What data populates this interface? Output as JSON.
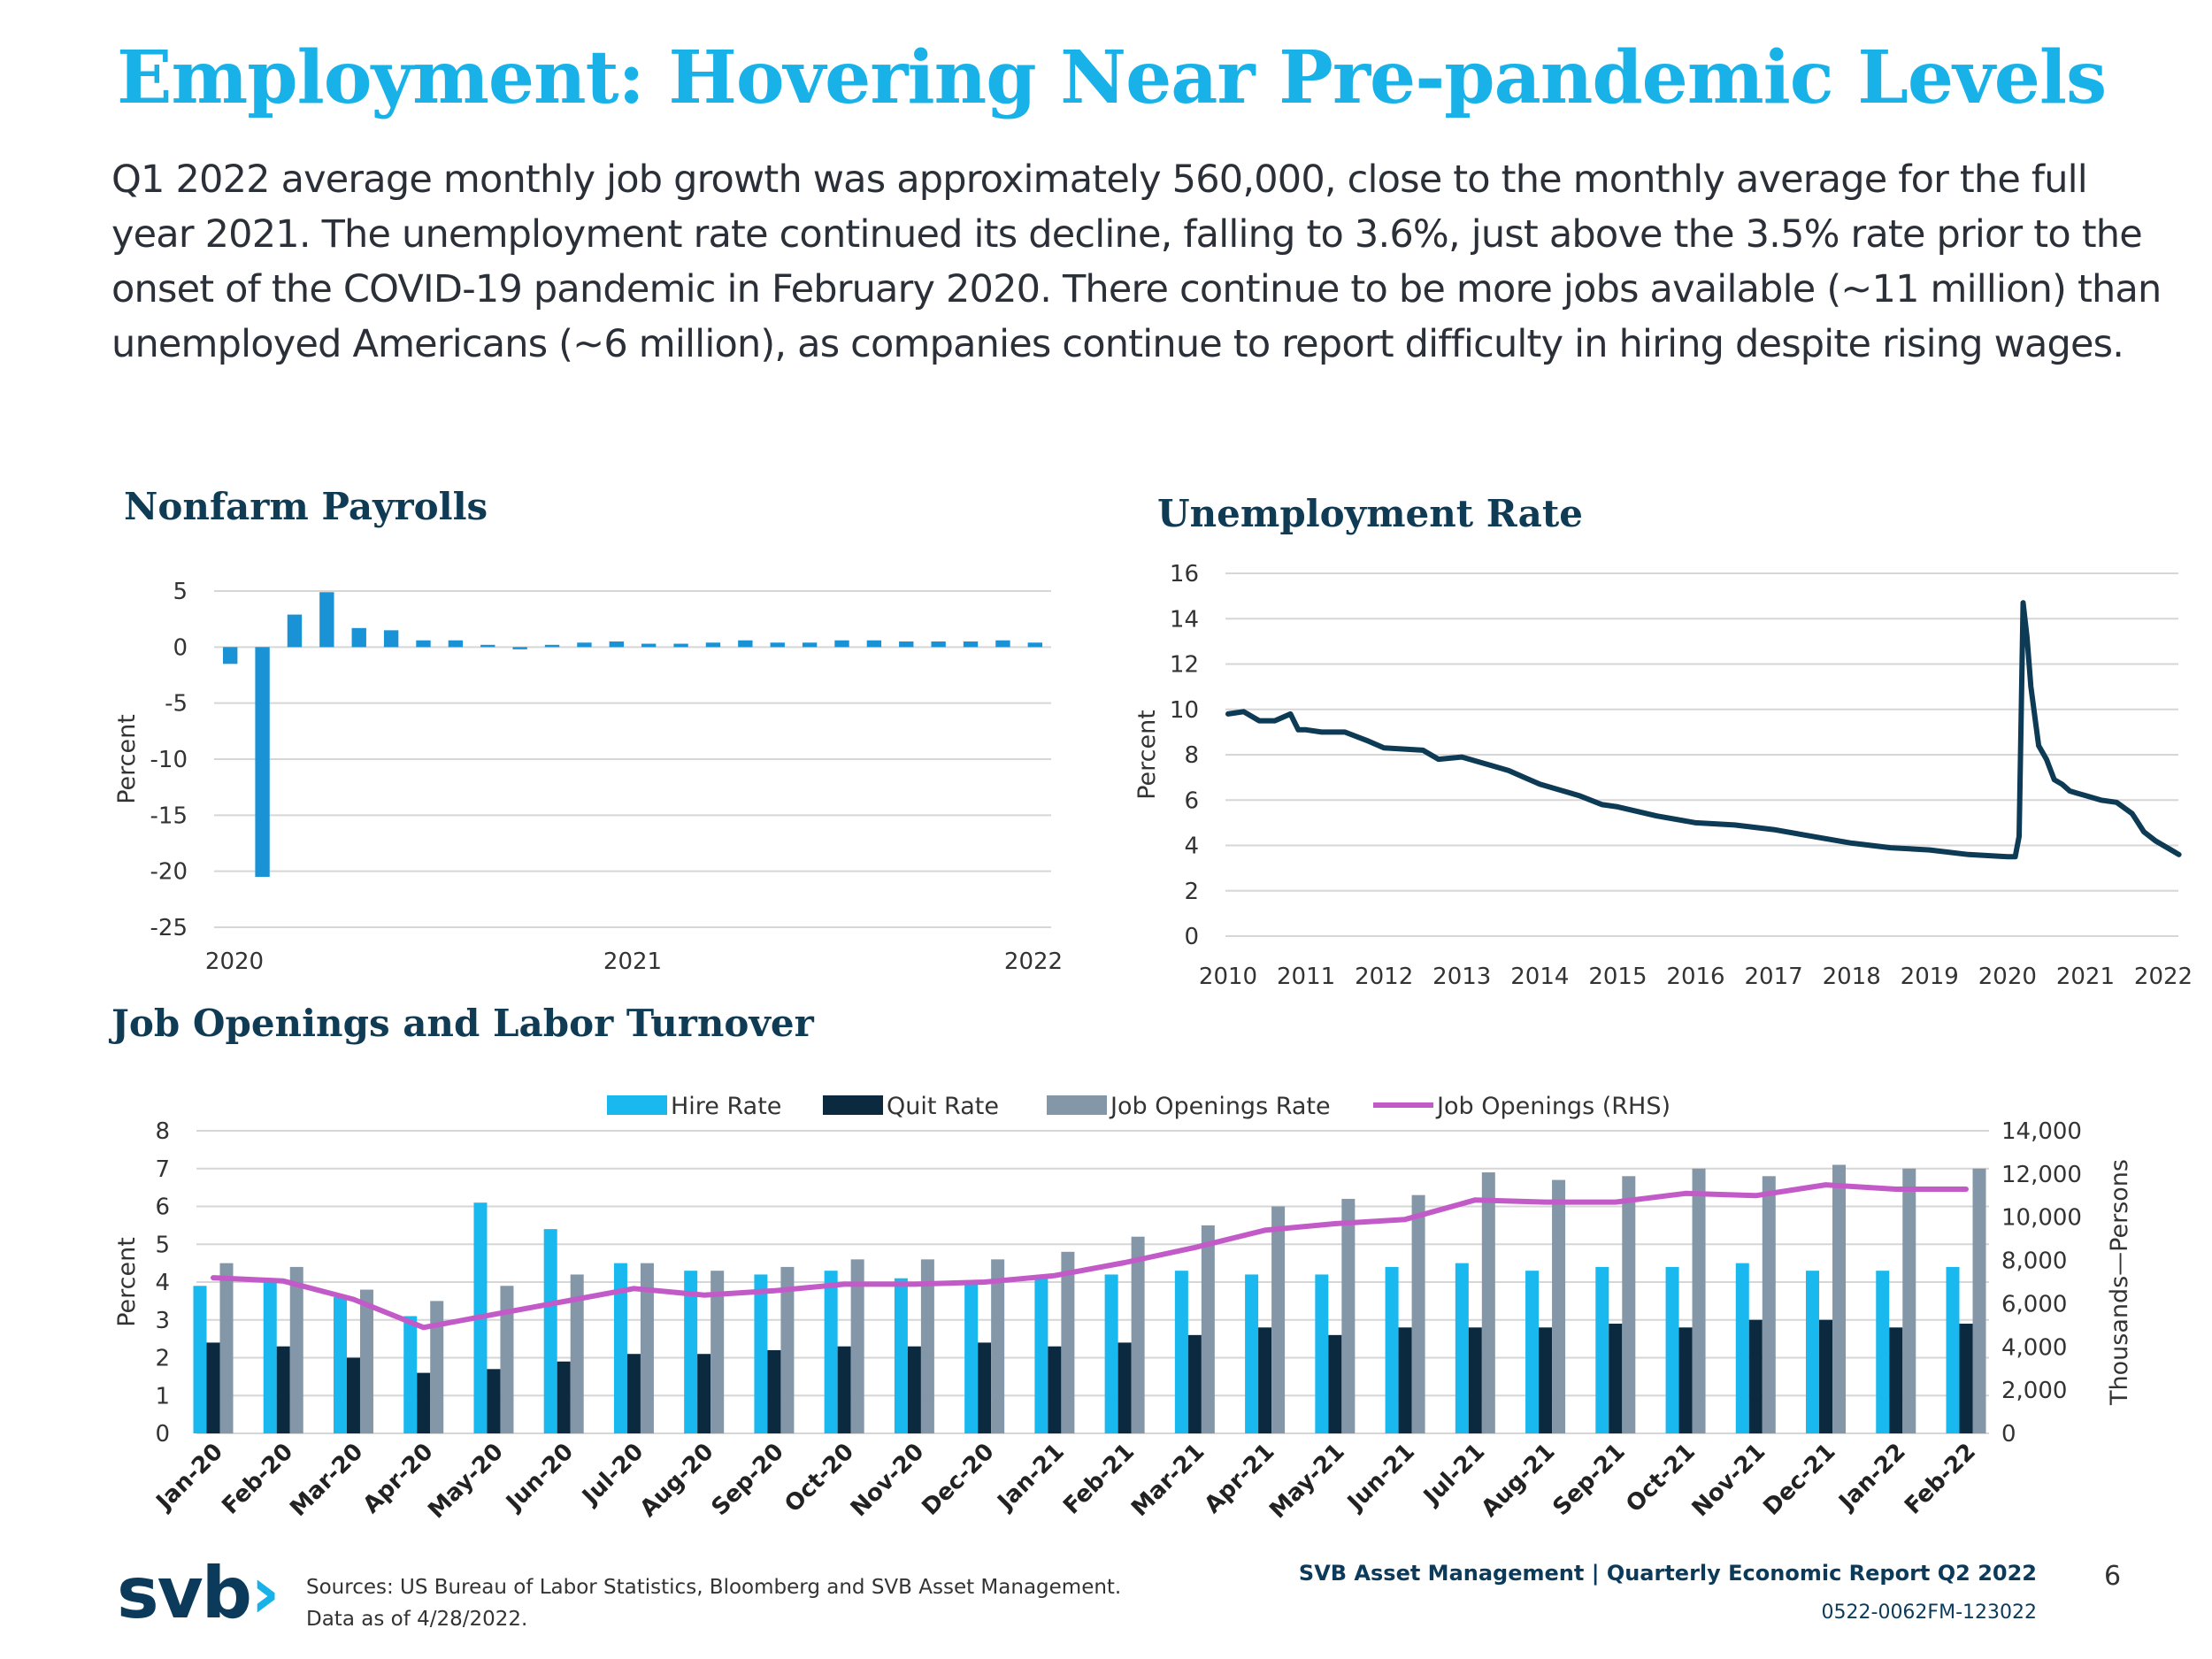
{
  "title": "Employment: Hovering Near Pre-pandemic Levels",
  "intro": "Q1 2022 average monthly job growth was approximately 560,000, close to the monthly average for the full year 2021. The unemployment rate continued its decline, falling to 3.6%, just above the 3.5% rate prior to the onset of the COVID-19 pandemic in February 2020. There continue to be more jobs available (~11 million) than unemployed Americans (~6 million), as companies continue to report difficulty in hiring despite rising wages.",
  "colors": {
    "title": "#19b2e8",
    "heading": "#0f3b55",
    "hire": "#19b8ee",
    "quit": "#0b2a3f",
    "openings_rate": "#8497a8",
    "openings_rhs": "#c25bc8",
    "payroll_bar": "#1a93d6",
    "unemp_line": "#0d3a55"
  },
  "chart_data": [
    {
      "id": "payrolls",
      "type": "bar",
      "title": "Nonfarm Payrolls",
      "ylabel": "Percent",
      "ylim": [
        -25,
        5
      ],
      "yticks": [
        "5",
        "0",
        "-5",
        "-10",
        "-15",
        "-20",
        "-25"
      ],
      "ytick_values": [
        5,
        0,
        -5,
        -10,
        -15,
        -20,
        -25
      ],
      "xticks": [
        "2020",
        "2021",
        "2022"
      ],
      "months": [
        "Jan-20",
        "Feb-20",
        "Mar-20",
        "Apr-20",
        "May-20",
        "Jun-20",
        "Jul-20",
        "Aug-20",
        "Sep-20",
        "Oct-20",
        "Nov-20",
        "Dec-20",
        "Jan-21",
        "Feb-21",
        "Mar-21",
        "Apr-21",
        "May-21",
        "Jun-21",
        "Jul-21",
        "Aug-21",
        "Sep-21",
        "Oct-21",
        "Nov-21",
        "Dec-21",
        "Jan-22",
        "Feb-22"
      ],
      "values": [
        -1.5,
        -20.5,
        2.9,
        4.9,
        1.7,
        1.5,
        0.6,
        0.6,
        0.2,
        -0.2,
        0.2,
        0.4,
        0.5,
        0.3,
        0.3,
        0.4,
        0.6,
        0.4,
        0.4,
        0.6,
        0.6,
        0.5,
        0.5,
        0.5,
        0.6,
        0.4
      ]
    },
    {
      "id": "unemployment",
      "type": "line",
      "title": "Unemployment Rate",
      "ylabel": "Percent",
      "ylim": [
        0,
        16
      ],
      "yticks": [
        "16",
        "14",
        "12",
        "10",
        "8",
        "6",
        "4",
        "2",
        "0"
      ],
      "ytick_values": [
        16,
        14,
        12,
        10,
        8,
        6,
        4,
        2,
        0
      ],
      "xticks": [
        "2010",
        "2011",
        "2012",
        "2013",
        "2014",
        "2015",
        "2016",
        "2017",
        "2018",
        "2019",
        "2020",
        "2021",
        "2022"
      ],
      "x_range": [
        2010,
        2022.25
      ],
      "series": [
        {
          "name": "Unemployment Rate",
          "x": [
            2010.0,
            2010.2,
            2010.4,
            2010.6,
            2010.8,
            2010.9,
            2011.0,
            2011.2,
            2011.5,
            2011.8,
            2012.0,
            2012.5,
            2012.7,
            2013.0,
            2013.4,
            2013.6,
            2013.8,
            2014.0,
            2014.5,
            2014.8,
            2015.0,
            2015.5,
            2016.0,
            2016.5,
            2017.0,
            2017.5,
            2018.0,
            2018.5,
            2019.0,
            2019.5,
            2020.0,
            2020.1,
            2020.15,
            2020.2,
            2020.25,
            2020.3,
            2020.4,
            2020.5,
            2020.6,
            2020.7,
            2020.8,
            2020.9,
            2021.0,
            2021.2,
            2021.4,
            2021.6,
            2021.75,
            2021.9,
            2022.0,
            2022.1,
            2022.2
          ],
          "values": [
            9.8,
            9.9,
            9.5,
            9.5,
            9.8,
            9.1,
            9.1,
            9.0,
            9.0,
            8.6,
            8.3,
            8.2,
            7.8,
            7.9,
            7.5,
            7.3,
            7.0,
            6.7,
            6.2,
            5.8,
            5.7,
            5.3,
            5.0,
            4.9,
            4.7,
            4.4,
            4.1,
            3.9,
            3.8,
            3.6,
            3.5,
            3.5,
            4.4,
            14.7,
            13.2,
            11.0,
            8.4,
            7.8,
            6.9,
            6.7,
            6.4,
            6.3,
            6.2,
            6.0,
            5.9,
            5.4,
            4.6,
            4.2,
            4.0,
            3.8,
            3.6
          ]
        }
      ]
    },
    {
      "id": "jolts",
      "type": "bar",
      "title": "Job Openings and Labor Turnover",
      "ylabel": "Percent",
      "ylabel_right": "Thousands—Persons",
      "ylim": [
        0,
        8
      ],
      "ylim_right": [
        0,
        14000
      ],
      "yticks": [
        "8",
        "7",
        "6",
        "5",
        "4",
        "3",
        "2",
        "1",
        "0"
      ],
      "ytick_values": [
        8,
        7,
        6,
        5,
        4,
        3,
        2,
        1,
        0
      ],
      "yticks_right": [
        "14,000",
        "12,000",
        "10,000",
        "8,000",
        "6,000",
        "4,000",
        "2,000",
        "0"
      ],
      "ytick_right_values": [
        14000,
        12000,
        10000,
        8000,
        6000,
        4000,
        2000,
        0
      ],
      "categories": [
        "Jan-20",
        "Feb-20",
        "Mar-20",
        "Apr-20",
        "May-20",
        "Jun-20",
        "Jul-20",
        "Aug-20",
        "Sep-20",
        "Oct-20",
        "Nov-20",
        "Dec-20",
        "Jan-21",
        "Feb-21",
        "Mar-21",
        "Apr-21",
        "May-21",
        "Jun-21",
        "Jul-21",
        "Aug-21",
        "Sep-21",
        "Oct-21",
        "Nov-21",
        "Dec-21",
        "Jan-22",
        "Feb-22"
      ],
      "series": [
        {
          "name": "Hire Rate",
          "type": "bar",
          "values": [
            3.9,
            4.0,
            3.6,
            3.1,
            6.1,
            5.4,
            4.5,
            4.3,
            4.2,
            4.3,
            4.1,
            4.0,
            4.1,
            4.2,
            4.3,
            4.2,
            4.2,
            4.4,
            4.5,
            4.3,
            4.4,
            4.4,
            4.5,
            4.3,
            4.3,
            4.4
          ]
        },
        {
          "name": "Quit Rate",
          "type": "bar",
          "values": [
            2.4,
            2.3,
            2.0,
            1.6,
            1.7,
            1.9,
            2.1,
            2.1,
            2.2,
            2.3,
            2.3,
            2.4,
            2.3,
            2.4,
            2.6,
            2.8,
            2.6,
            2.8,
            2.8,
            2.8,
            2.9,
            2.8,
            3.0,
            3.0,
            2.8,
            2.9
          ]
        },
        {
          "name": "Job Openings Rate",
          "type": "bar",
          "values": [
            4.5,
            4.4,
            3.8,
            3.5,
            3.9,
            4.2,
            4.5,
            4.3,
            4.4,
            4.6,
            4.6,
            4.6,
            4.8,
            5.2,
            5.5,
            6.0,
            6.2,
            6.3,
            6.9,
            6.7,
            6.8,
            7.0,
            6.8,
            7.1,
            7.0,
            7.0
          ]
        },
        {
          "name": "Job Openings (RHS)",
          "type": "line",
          "axis": "right",
          "values": [
            7200,
            7050,
            6200,
            4900,
            5500,
            6100,
            6700,
            6400,
            6600,
            6900,
            6900,
            7000,
            7300,
            7900,
            8600,
            9400,
            9700,
            9900,
            10800,
            10700,
            10700,
            11100,
            11000,
            11500,
            11300,
            11300
          ]
        }
      ]
    }
  ],
  "footer": {
    "logo_text": "svb",
    "logo_chevron": "›",
    "sources_line1": "Sources: US Bureau of Labor Statistics, Bloomberg and SVB Asset Management.",
    "sources_line2": "Data as of 4/28/2022.",
    "report": "SVB Asset Management | Quarterly Economic Report Q2 2022",
    "doc_id": "0522-0062FM-123022",
    "page": "6"
  }
}
